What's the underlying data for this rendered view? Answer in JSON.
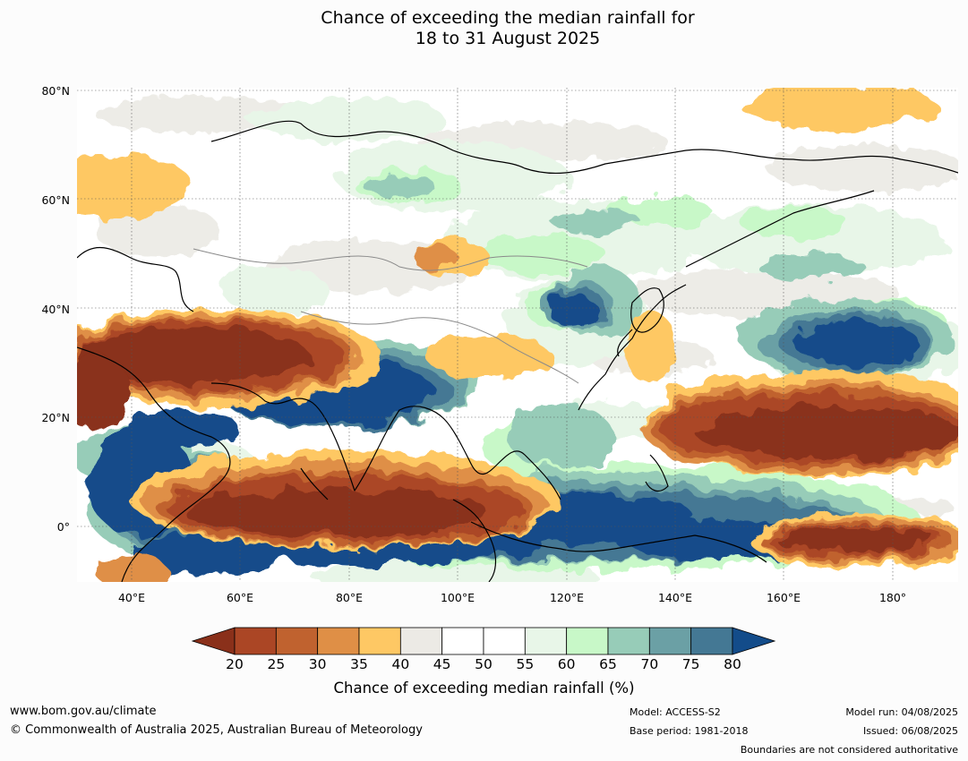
{
  "title": {
    "line1": "Chance of exceeding the median rainfall for",
    "line2": "18 to 31 August 2025"
  },
  "map": {
    "lat_labels": [
      "80°N",
      "60°N",
      "40°N",
      "20°N",
      "0°"
    ],
    "lon_labels": [
      "40°E",
      "60°E",
      "80°E",
      "100°E",
      "120°E",
      "140°E",
      "160°E",
      "180°"
    ],
    "extent": {
      "lon_min": 30,
      "lon_max": 192,
      "lat_min": -10,
      "lat_max": 80
    },
    "colors": {
      "c20": "#8a301a",
      "c25": "#ab4625",
      "c30": "#c0622f",
      "c35": "#df8f46",
      "c40": "#fec864",
      "c45": "#eceae5",
      "c55": "#ffffff",
      "c60": "#e8f6e8",
      "c65": "#c8f8c8",
      "c70": "#97ccb8",
      "c75": "#6ba0a5",
      "c80": "#447894",
      "cmax": "#134c8a"
    }
  },
  "colorbar": {
    "ticks": [
      "20",
      "25",
      "30",
      "35",
      "40",
      "45",
      "50",
      "55",
      "60",
      "65",
      "70",
      "75",
      "80"
    ],
    "colors": [
      "#ab4625",
      "#c0622f",
      "#df8f46",
      "#fec864",
      "#eceae5",
      "#ffffff",
      "#ffffff",
      "#e8f6e8",
      "#c8f8c8",
      "#97ccb8",
      "#6ba0a5",
      "#447894"
    ],
    "low_color": "#8a301a",
    "high_color": "#134c8a",
    "label": "Chance of exceeding median rainfall (%)"
  },
  "footer": {
    "url": "www.bom.gov.au/climate",
    "copyright": "© Commonwealth of Australia 2025, Australian Bureau of Meteorology",
    "model": "Model: ACCESS-S2",
    "base_period": "Base period: 1981-2018",
    "model_run": "Model run: 04/08/2025",
    "issued": "Issued: 06/08/2025",
    "boundaries_note": "Boundaries are not considered authoritative"
  }
}
